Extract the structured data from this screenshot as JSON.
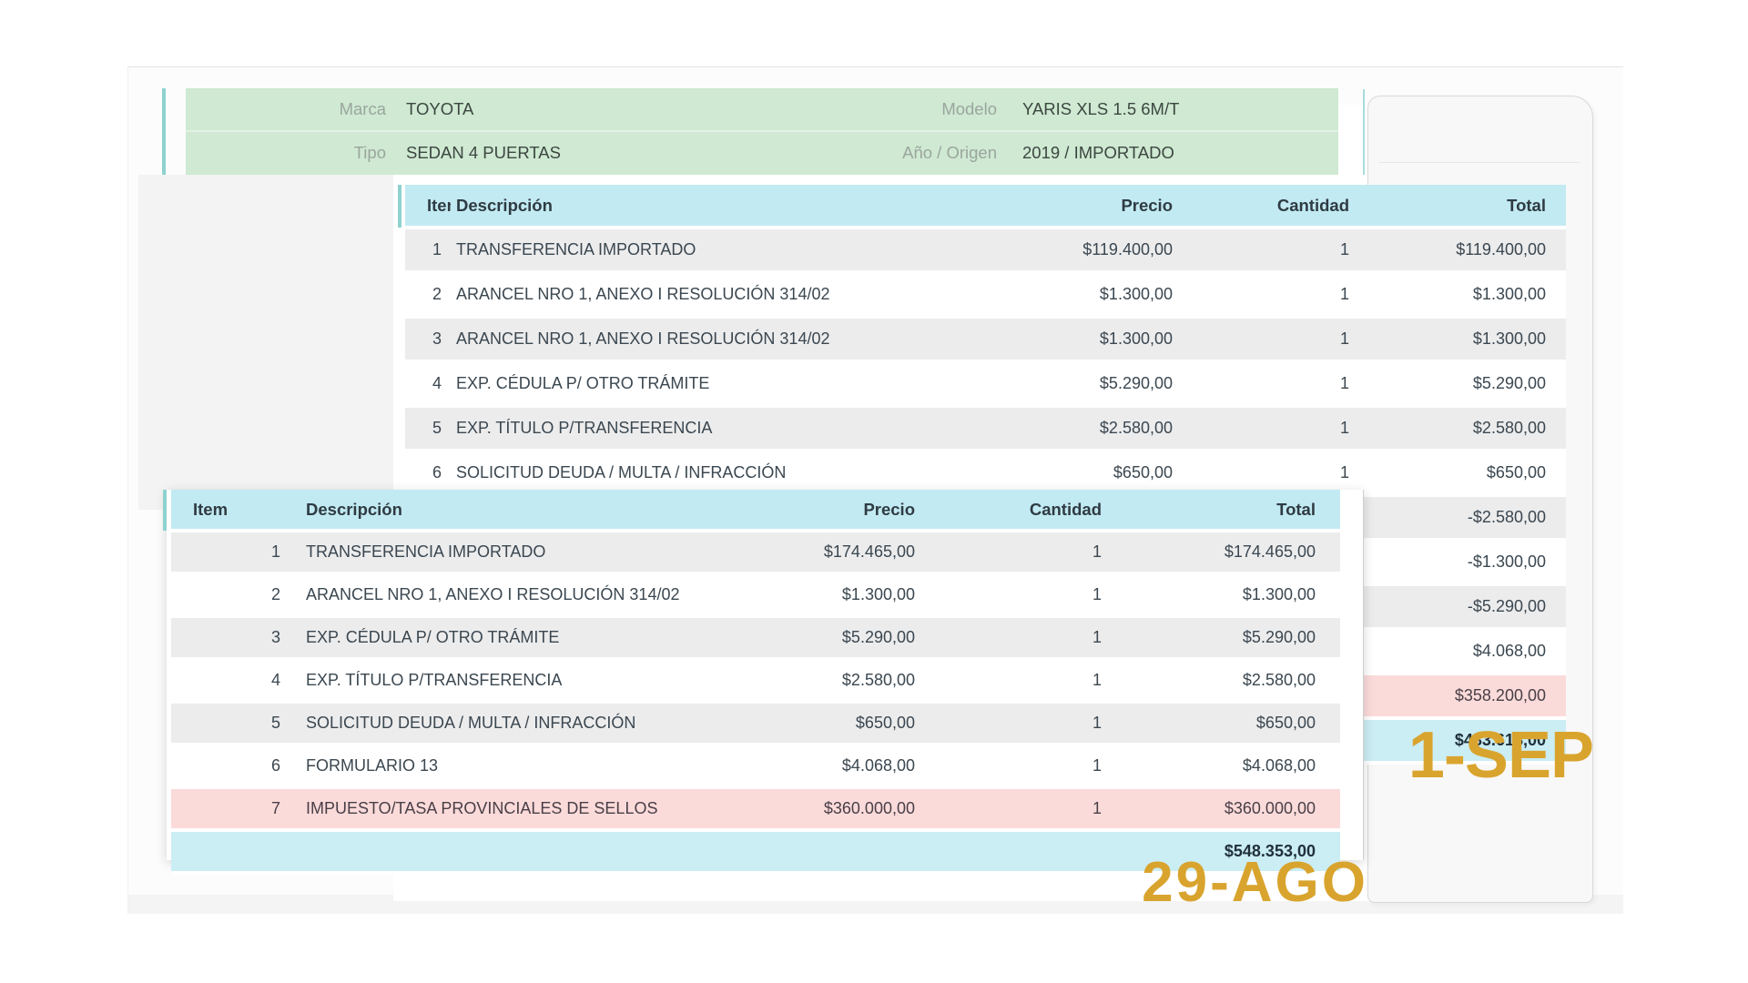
{
  "vehicle": {
    "marca_label": "Marca",
    "marca": "TOYOTA",
    "modelo_label": "Modelo",
    "modelo": "YARIS XLS 1.5 6M/T",
    "tipo_label": "Tipo",
    "tipo": "SEDAN 4 PUERTAS",
    "anio_origen_label": "Año / Origen",
    "anio_origen": "2019 / IMPORTADO"
  },
  "columns": {
    "item": "Item",
    "desc": "Descripción",
    "precio": "Precio",
    "cantidad": "Cantidad",
    "total": "Total"
  },
  "back_table": {
    "date_label": "1-SEP",
    "rows": [
      {
        "item": "1",
        "desc": "TRANSFERENCIA IMPORTADO",
        "precio": "$119.400,00",
        "cantidad": "1",
        "total": "$119.400,00",
        "variant": "gray"
      },
      {
        "item": "2",
        "desc": "ARANCEL NRO 1, ANEXO I RESOLUCIÓN 314/02",
        "precio": "$1.300,00",
        "cantidad": "1",
        "total": "$1.300,00",
        "variant": "white"
      },
      {
        "item": "3",
        "desc": "ARANCEL NRO 1, ANEXO I RESOLUCIÓN 314/02",
        "precio": "$1.300,00",
        "cantidad": "1",
        "total": "$1.300,00",
        "variant": "gray"
      },
      {
        "item": "4",
        "desc": "EXP. CÉDULA P/ OTRO TRÁMITE",
        "precio": "$5.290,00",
        "cantidad": "1",
        "total": "$5.290,00",
        "variant": "white"
      },
      {
        "item": "5",
        "desc": "EXP. TÍTULO P/TRANSFERENCIA",
        "precio": "$2.580,00",
        "cantidad": "1",
        "total": "$2.580,00",
        "variant": "gray"
      },
      {
        "item": "6",
        "desc": "SOLICITUD DEUDA / MULTA / INFRACCIÓN",
        "precio": "$650,00",
        "cantidad": "1",
        "total": "$650,00",
        "variant": "white"
      },
      {
        "item": "",
        "desc": "",
        "precio": "",
        "cantidad": "",
        "total": "-$2.580,00",
        "variant": "gray"
      },
      {
        "item": "",
        "desc": "",
        "precio": "",
        "cantidad": "",
        "total": "-$1.300,00",
        "variant": "white"
      },
      {
        "item": "",
        "desc": "",
        "precio": "",
        "cantidad": "",
        "total": "-$5.290,00",
        "variant": "gray"
      },
      {
        "item": "",
        "desc": "",
        "precio": "",
        "cantidad": "",
        "total": "$4.068,00",
        "variant": "white"
      },
      {
        "item": "",
        "desc": "",
        "precio": "",
        "cantidad": "",
        "total": "$358.200,00",
        "variant": "pink"
      },
      {
        "item": "",
        "desc": "",
        "precio": "",
        "cantidad": "",
        "total": "$483.618,00",
        "variant": "total"
      }
    ],
    "total": "$483.618,00"
  },
  "front_table": {
    "date_label": "29-AGO",
    "rows": [
      {
        "item": "1",
        "desc": "TRANSFERENCIA IMPORTADO",
        "precio": "$174.465,00",
        "cantidad": "1",
        "total": "$174.465,00",
        "variant": "gray"
      },
      {
        "item": "2",
        "desc": "ARANCEL NRO 1, ANEXO I RESOLUCIÓN 314/02",
        "precio": "$1.300,00",
        "cantidad": "1",
        "total": "$1.300,00",
        "variant": "white"
      },
      {
        "item": "3",
        "desc": "EXP. CÉDULA P/ OTRO TRÁMITE",
        "precio": "$5.290,00",
        "cantidad": "1",
        "total": "$5.290,00",
        "variant": "gray"
      },
      {
        "item": "4",
        "desc": "EXP. TÍTULO P/TRANSFERENCIA",
        "precio": "$2.580,00",
        "cantidad": "1",
        "total": "$2.580,00",
        "variant": "white"
      },
      {
        "item": "5",
        "desc": "SOLICITUD DEUDA / MULTA / INFRACCIÓN",
        "precio": "$650,00",
        "cantidad": "1",
        "total": "$650,00",
        "variant": "gray"
      },
      {
        "item": "6",
        "desc": "FORMULARIO 13",
        "precio": "$4.068,00",
        "cantidad": "1",
        "total": "$4.068,00",
        "variant": "white"
      },
      {
        "item": "7",
        "desc": "IMPUESTO/TASA PROVINCIALES DE SELLOS",
        "precio": "$360.000,00",
        "cantidad": "1",
        "total": "$360.000,00",
        "variant": "pink"
      },
      {
        "item": "",
        "desc": "",
        "precio": "",
        "cantidad": "",
        "total": "$548.353,00",
        "variant": "total"
      }
    ],
    "total": "$548.353,00"
  },
  "colors": {
    "table_header_bg": "#c2eaf2",
    "stripe_row_bg": "#ececed",
    "pink_row_bg": "#fbdbda",
    "total_row_bg": "#cbedf4",
    "green_header_bg": "#cfe9d2",
    "teal_accent": "#8ed2cf",
    "date_stamp": "#d9a42e"
  }
}
